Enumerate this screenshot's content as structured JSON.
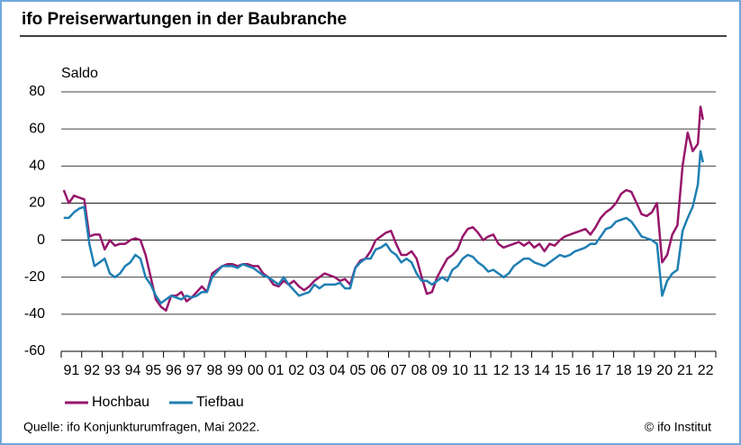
{
  "chart_data": {
    "type": "line",
    "title": "ifo Preiserwartungen in der Baubranche",
    "y_label": "Saldo",
    "source": "Quelle: ifo Konjunkturumfragen, Mai 2022.",
    "credit": "© ifo Institut",
    "xlim": [
      1991,
      2023
    ],
    "ylim": [
      -60,
      80
    ],
    "yticks": [
      -60,
      -40,
      -20,
      0,
      20,
      40,
      60,
      80
    ],
    "grid": true,
    "legend": "bottom-left",
    "xticks": [
      {
        "value": 1991.5,
        "label": "91"
      },
      {
        "value": 1992.5,
        "label": "92"
      },
      {
        "value": 1993.5,
        "label": "93"
      },
      {
        "value": 1994.5,
        "label": "94"
      },
      {
        "value": 1995.5,
        "label": "95"
      },
      {
        "value": 1996.5,
        "label": "96"
      },
      {
        "value": 1997.5,
        "label": "97"
      },
      {
        "value": 1998.5,
        "label": "98"
      },
      {
        "value": 1999.5,
        "label": "99"
      },
      {
        "value": 2000.5,
        "label": "00"
      },
      {
        "value": 2001.5,
        "label": "01"
      },
      {
        "value": 2002.5,
        "label": "02"
      },
      {
        "value": 2003.5,
        "label": "03"
      },
      {
        "value": 2004.5,
        "label": "04"
      },
      {
        "value": 2005.5,
        "label": "05"
      },
      {
        "value": 2006.5,
        "label": "06"
      },
      {
        "value": 2007.5,
        "label": "07"
      },
      {
        "value": 2008.5,
        "label": "08"
      },
      {
        "value": 2009.5,
        "label": "09"
      },
      {
        "value": 2010.5,
        "label": "10"
      },
      {
        "value": 2011.5,
        "label": "11"
      },
      {
        "value": 2012.5,
        "label": "12"
      },
      {
        "value": 2013.5,
        "label": "13"
      },
      {
        "value": 2014.5,
        "label": "14"
      },
      {
        "value": 2015.5,
        "label": "15"
      },
      {
        "value": 2016.5,
        "label": "16"
      },
      {
        "value": 2017.5,
        "label": "17"
      },
      {
        "value": 2018.5,
        "label": "18"
      },
      {
        "value": 2019.5,
        "label": "19"
      },
      {
        "value": 2020.5,
        "label": "20"
      },
      {
        "value": 2021.5,
        "label": "21"
      },
      {
        "value": 2022.5,
        "label": "22"
      }
    ],
    "x": [
      1991.125,
      1991.375,
      1991.625,
      1991.875,
      1992.125,
      1992.375,
      1992.625,
      1992.875,
      1993.125,
      1993.375,
      1993.625,
      1993.875,
      1994.125,
      1994.375,
      1994.625,
      1994.875,
      1995.125,
      1995.375,
      1995.625,
      1995.875,
      1996.125,
      1996.375,
      1996.625,
      1996.875,
      1997.125,
      1997.375,
      1997.625,
      1997.875,
      1998.125,
      1998.375,
      1998.625,
      1998.875,
      1999.125,
      1999.375,
      1999.625,
      1999.875,
      2000.125,
      2000.375,
      2000.625,
      2000.875,
      2001.125,
      2001.375,
      2001.625,
      2001.875,
      2002.125,
      2002.375,
      2002.625,
      2002.875,
      2003.125,
      2003.375,
      2003.625,
      2003.875,
      2004.125,
      2004.375,
      2004.625,
      2004.875,
      2005.125,
      2005.375,
      2005.625,
      2005.875,
      2006.125,
      2006.375,
      2006.625,
      2006.875,
      2007.125,
      2007.375,
      2007.625,
      2007.875,
      2008.125,
      2008.375,
      2008.625,
      2008.875,
      2009.125,
      2009.375,
      2009.625,
      2009.875,
      2010.125,
      2010.375,
      2010.625,
      2010.875,
      2011.125,
      2011.375,
      2011.625,
      2011.875,
      2012.125,
      2012.375,
      2012.625,
      2012.875,
      2013.125,
      2013.375,
      2013.625,
      2013.875,
      2014.125,
      2014.375,
      2014.625,
      2014.875,
      2015.125,
      2015.375,
      2015.625,
      2015.875,
      2016.125,
      2016.375,
      2016.625,
      2016.875,
      2017.125,
      2017.375,
      2017.625,
      2017.875,
      2018.125,
      2018.375,
      2018.625,
      2018.875,
      2019.125,
      2019.375,
      2019.625,
      2019.875,
      2020.125,
      2020.375,
      2020.625,
      2020.875,
      2021.125,
      2021.375,
      2021.625,
      2021.875,
      2022.125,
      2022.25,
      2022.375
    ],
    "series": [
      {
        "name": "Hochbau",
        "color": "#97166b",
        "values": [
          27,
          20,
          24,
          23,
          22,
          2,
          3,
          3,
          -5,
          0,
          -3,
          -2,
          -2,
          0,
          1,
          0,
          -8,
          -20,
          -32,
          -36,
          -38,
          -30,
          -30,
          -28,
          -33,
          -31,
          -28,
          -25,
          -28,
          -18,
          -16,
          -14,
          -13,
          -13,
          -14,
          -13,
          -13,
          -14,
          -14,
          -18,
          -20,
          -24,
          -25,
          -22,
          -24,
          -22,
          -25,
          -27,
          -25,
          -22,
          -20,
          -18,
          -19,
          -20,
          -22,
          -21,
          -24,
          -15,
          -11,
          -10,
          -6,
          0,
          2,
          4,
          5,
          -2,
          -8,
          -8,
          -6,
          -10,
          -20,
          -29,
          -28,
          -20,
          -15,
          -10,
          -8,
          -5,
          2,
          6,
          7,
          4,
          0,
          2,
          3,
          -2,
          -4,
          -3,
          -2,
          -1,
          -3,
          -1,
          -4,
          -2,
          -6,
          -2,
          -3,
          0,
          2,
          3,
          4,
          5,
          6,
          3,
          7,
          12,
          15,
          17,
          20,
          25,
          27,
          26,
          20,
          14,
          13,
          15,
          20,
          -12,
          -8,
          3,
          8,
          40,
          58,
          48,
          52,
          72,
          65
        ]
      },
      {
        "name": "Tiefbau",
        "color": "#1f7fb3",
        "values": [
          12,
          12,
          15,
          17,
          18,
          -2,
          -14,
          -12,
          -10,
          -18,
          -20,
          -18,
          -14,
          -12,
          -8,
          -10,
          -20,
          -24,
          -30,
          -34,
          -32,
          -30,
          -31,
          -32,
          -30,
          -31,
          -30,
          -28,
          -28,
          -20,
          -17,
          -14,
          -14,
          -14,
          -15,
          -13,
          -14,
          -15,
          -17,
          -19,
          -20,
          -22,
          -24,
          -20,
          -24,
          -27,
          -30,
          -29,
          -28,
          -24,
          -26,
          -24,
          -24,
          -24,
          -23,
          -26,
          -26,
          -15,
          -12,
          -10,
          -10,
          -5,
          -4,
          -2,
          -6,
          -8,
          -12,
          -10,
          -12,
          -18,
          -22,
          -22,
          -24,
          -22,
          -20,
          -22,
          -16,
          -14,
          -10,
          -8,
          -9,
          -12,
          -14,
          -17,
          -16,
          -18,
          -20,
          -18,
          -14,
          -12,
          -10,
          -10,
          -12,
          -13,
          -14,
          -12,
          -10,
          -8,
          -9,
          -8,
          -6,
          -5,
          -4,
          -2,
          -2,
          2,
          6,
          7,
          10,
          11,
          12,
          10,
          6,
          2,
          1,
          0,
          -2,
          -30,
          -22,
          -18,
          -16,
          5,
          12,
          18,
          30,
          48,
          42
        ]
      }
    ]
  }
}
